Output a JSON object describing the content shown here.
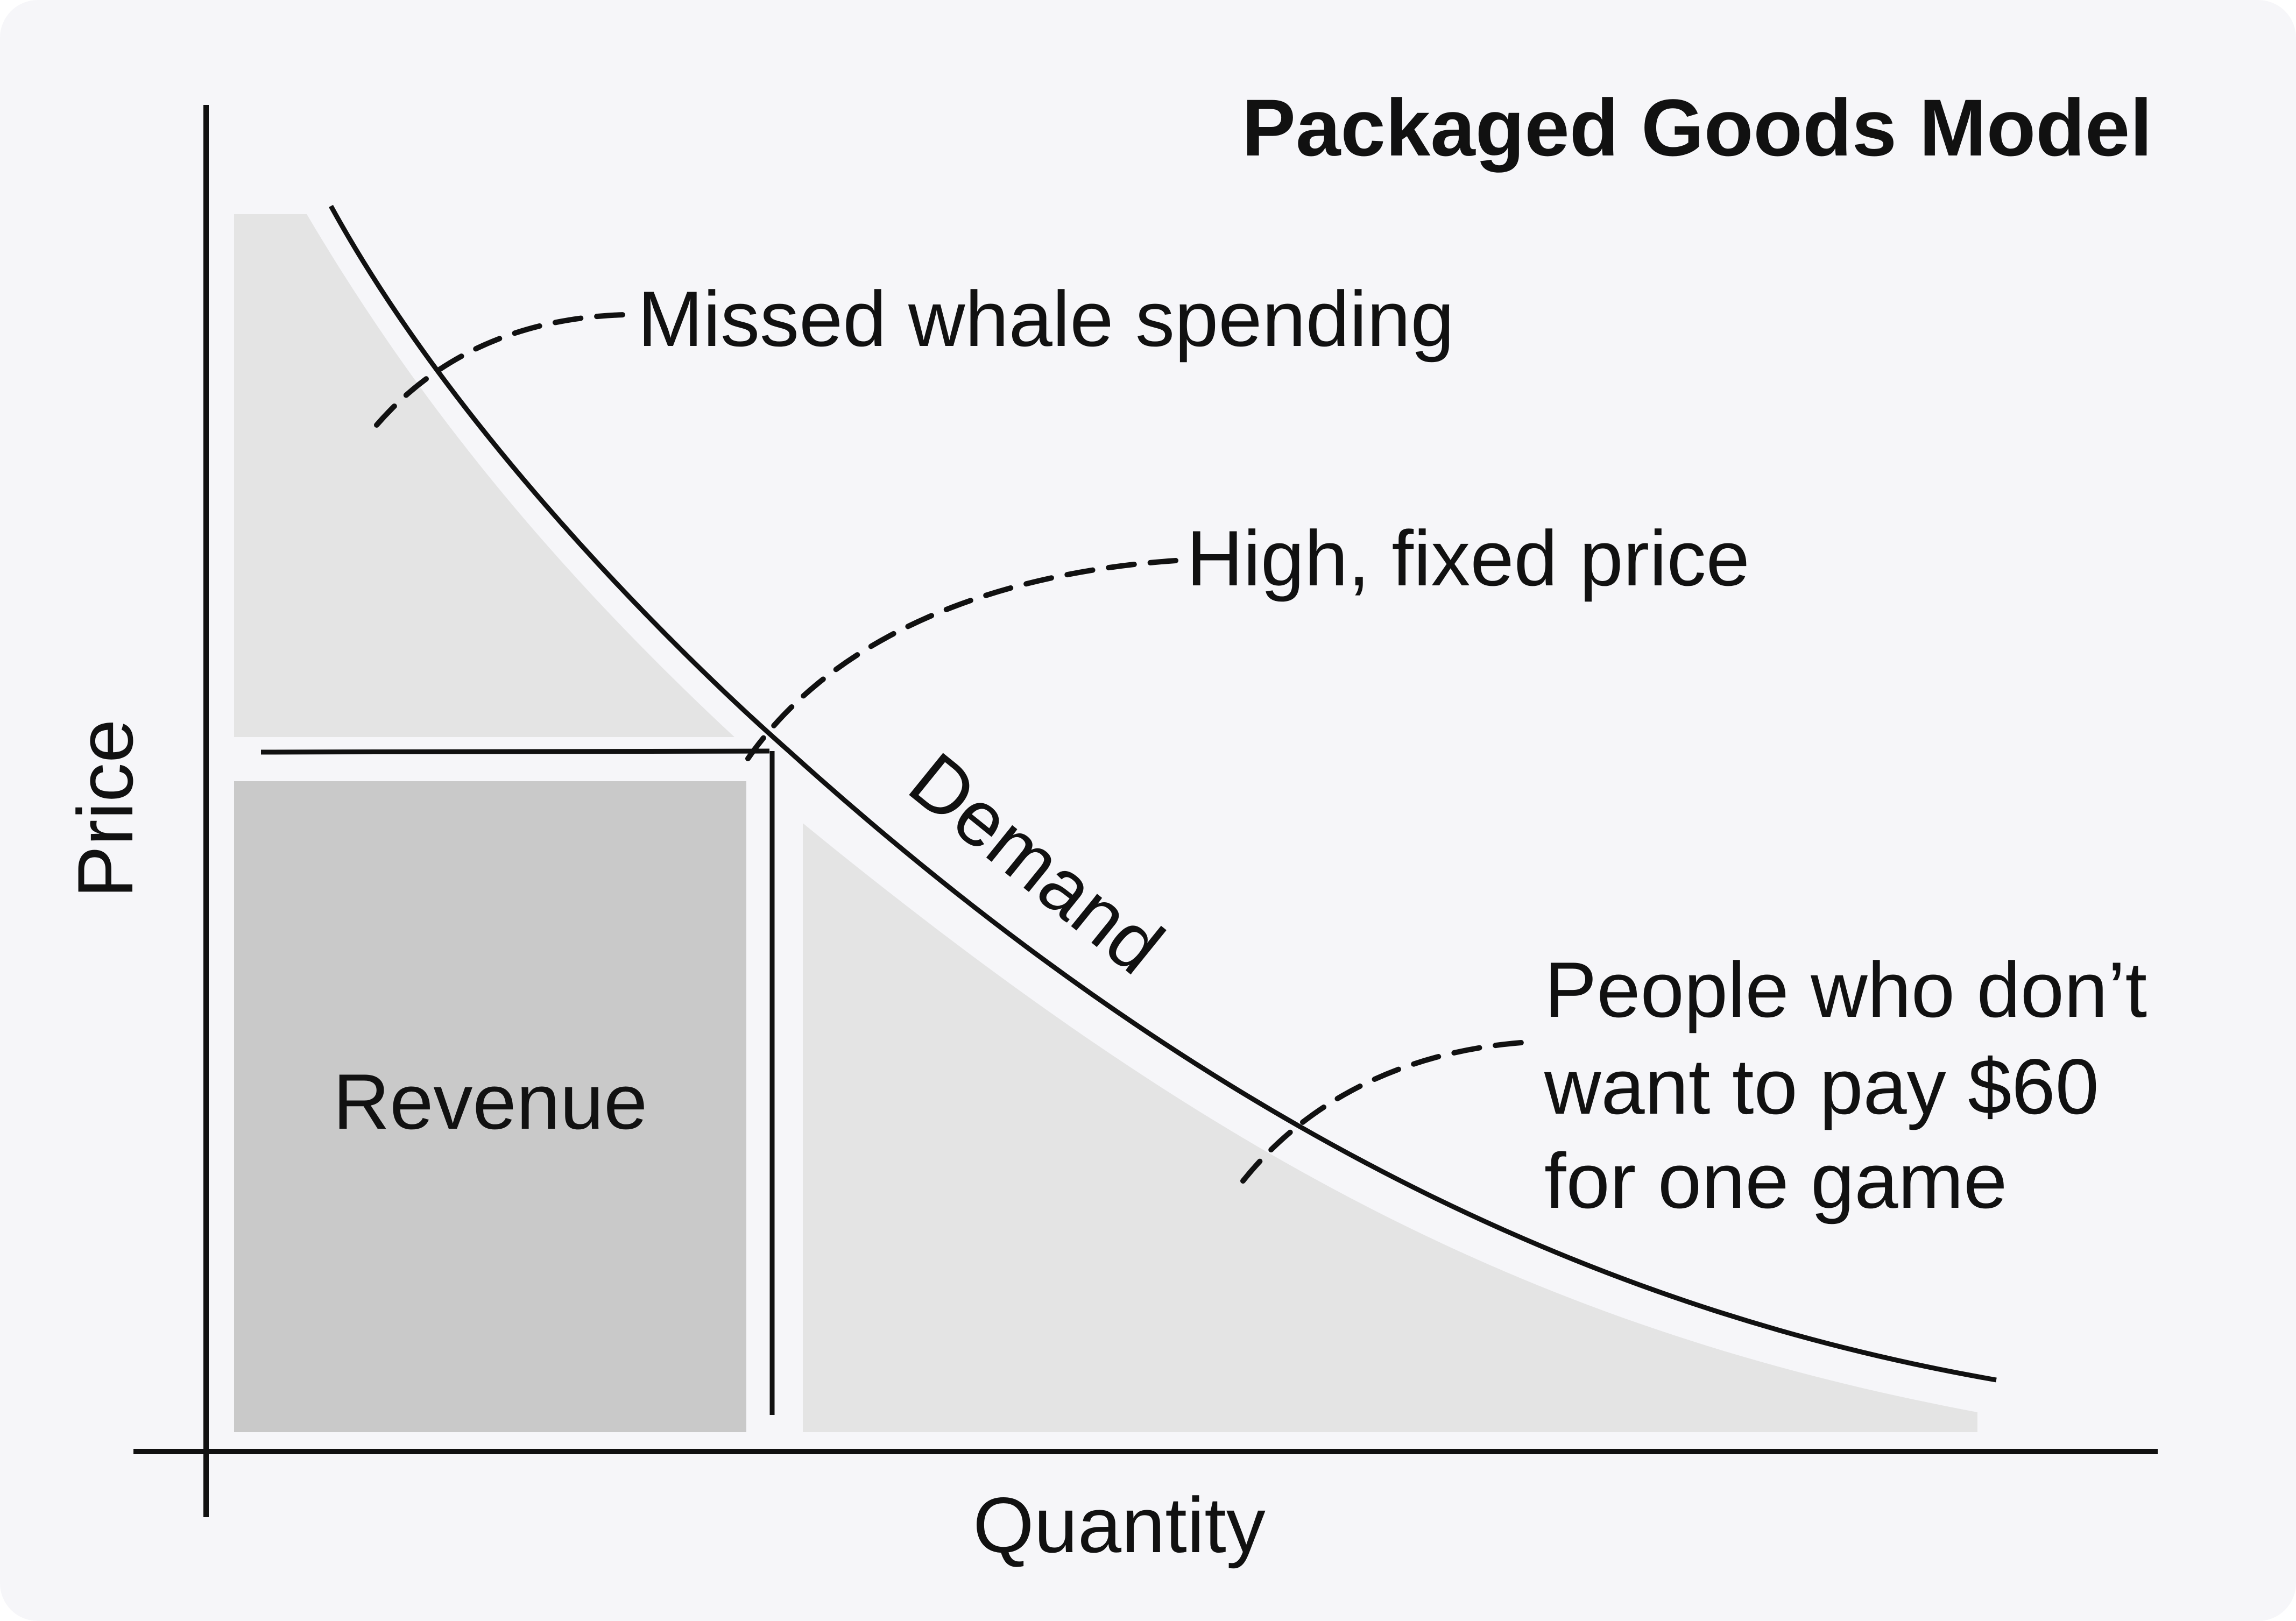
{
  "title": "Packaged Goods Model",
  "axes": {
    "x_label": "Quantity",
    "y_label": "Price"
  },
  "curve_label": "Demand",
  "region_label": "Revenue",
  "annotations": {
    "missed_whale": "Missed whale spending",
    "fixed_price": "High, fixed price",
    "people_line1": "People who don’t",
    "people_line2": "want to pay $60",
    "people_line3": "for one game"
  },
  "colors": {
    "background": "#f6f6f9",
    "light_fill": "#e4e4e4",
    "revenue_fill": "#c9c9c9",
    "stroke": "#111111"
  }
}
